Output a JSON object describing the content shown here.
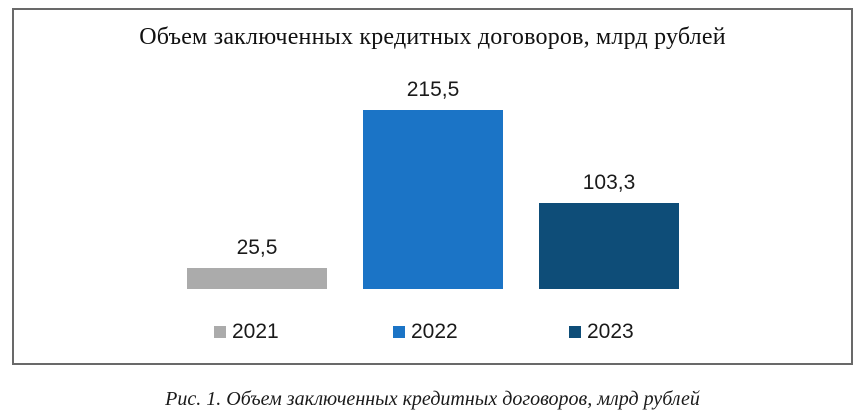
{
  "chart_data": {
    "type": "bar",
    "title": "Объем заключенных кредитных договоров, млрд рублей",
    "categories": [
      "2021",
      "2022",
      "2023"
    ],
    "values": [
      25.5,
      215.5,
      103.3
    ],
    "value_labels": [
      "25,5",
      "215,5",
      "103,3"
    ],
    "colors": [
      "#ABABAB",
      "#1B74C6",
      "#0E4D78"
    ],
    "xlabel": "",
    "ylabel": "",
    "grid": false,
    "axes_visible": false,
    "legend": {
      "position": "bottom",
      "entries": [
        "2021",
        "2022",
        "2023"
      ]
    }
  },
  "caption": "Рис. 1. Объем заключенных кредитных договоров, млрд рублей"
}
